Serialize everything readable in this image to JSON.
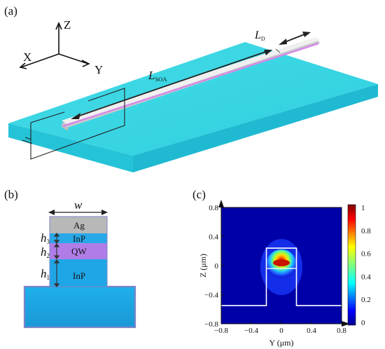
{
  "panel_a": {
    "label": "(a)",
    "axis_z": "Z",
    "axis_x": "X",
    "axis_y": "Y",
    "length_soa_main": "L",
    "length_soa_sub": "SOA",
    "length_d_main": "L",
    "length_d_sub": "D",
    "substrate_color": "#36d3e0",
    "ridge_color": "#e6e6e6",
    "stripe_color": "#d58ae8"
  },
  "panel_b": {
    "label": "(b)",
    "width_label": "w",
    "layers": [
      {
        "name": "Ag",
        "color": "#b8b8b8"
      },
      {
        "name": "InP",
        "color": "#28a8e8"
      },
      {
        "name": "QW",
        "color": "#b07de8"
      },
      {
        "name": "InP",
        "color": "#1fa6e6"
      }
    ],
    "heights": [
      {
        "main": "h",
        "sub": "3"
      },
      {
        "main": "h",
        "sub": "2"
      },
      {
        "main": "h",
        "sub": "1"
      }
    ],
    "substrate_color": "#19a2e0"
  },
  "panel_c": {
    "label": "(c)",
    "chart_data": {
      "type": "heatmap",
      "xlabel": "Y (μm)",
      "ylabel": "Z (μm)",
      "xlim": [
        -0.8,
        0.8
      ],
      "ylim": [
        -0.8,
        0.8
      ],
      "x_ticks": [
        "−0.8",
        "−0.4",
        "0",
        "0.4",
        "0.8"
      ],
      "y_ticks": [
        "0.8",
        "0.4",
        "0",
        "−0.4",
        "−0.8"
      ],
      "colorbar_ticks": [
        "1",
        "0.8",
        "0.6",
        "0.4",
        "0.2",
        "0"
      ],
      "colorbar_range": [
        0,
        1
      ],
      "ridge_outline": {
        "y_left": -0.2,
        "y_right": 0.2,
        "z_top": 0.24,
        "z_base": -0.55
      },
      "qw_line_z": -0.04,
      "mode_peak": {
        "y": 0.0,
        "z": 0.0,
        "value": 1.0
      }
    }
  }
}
